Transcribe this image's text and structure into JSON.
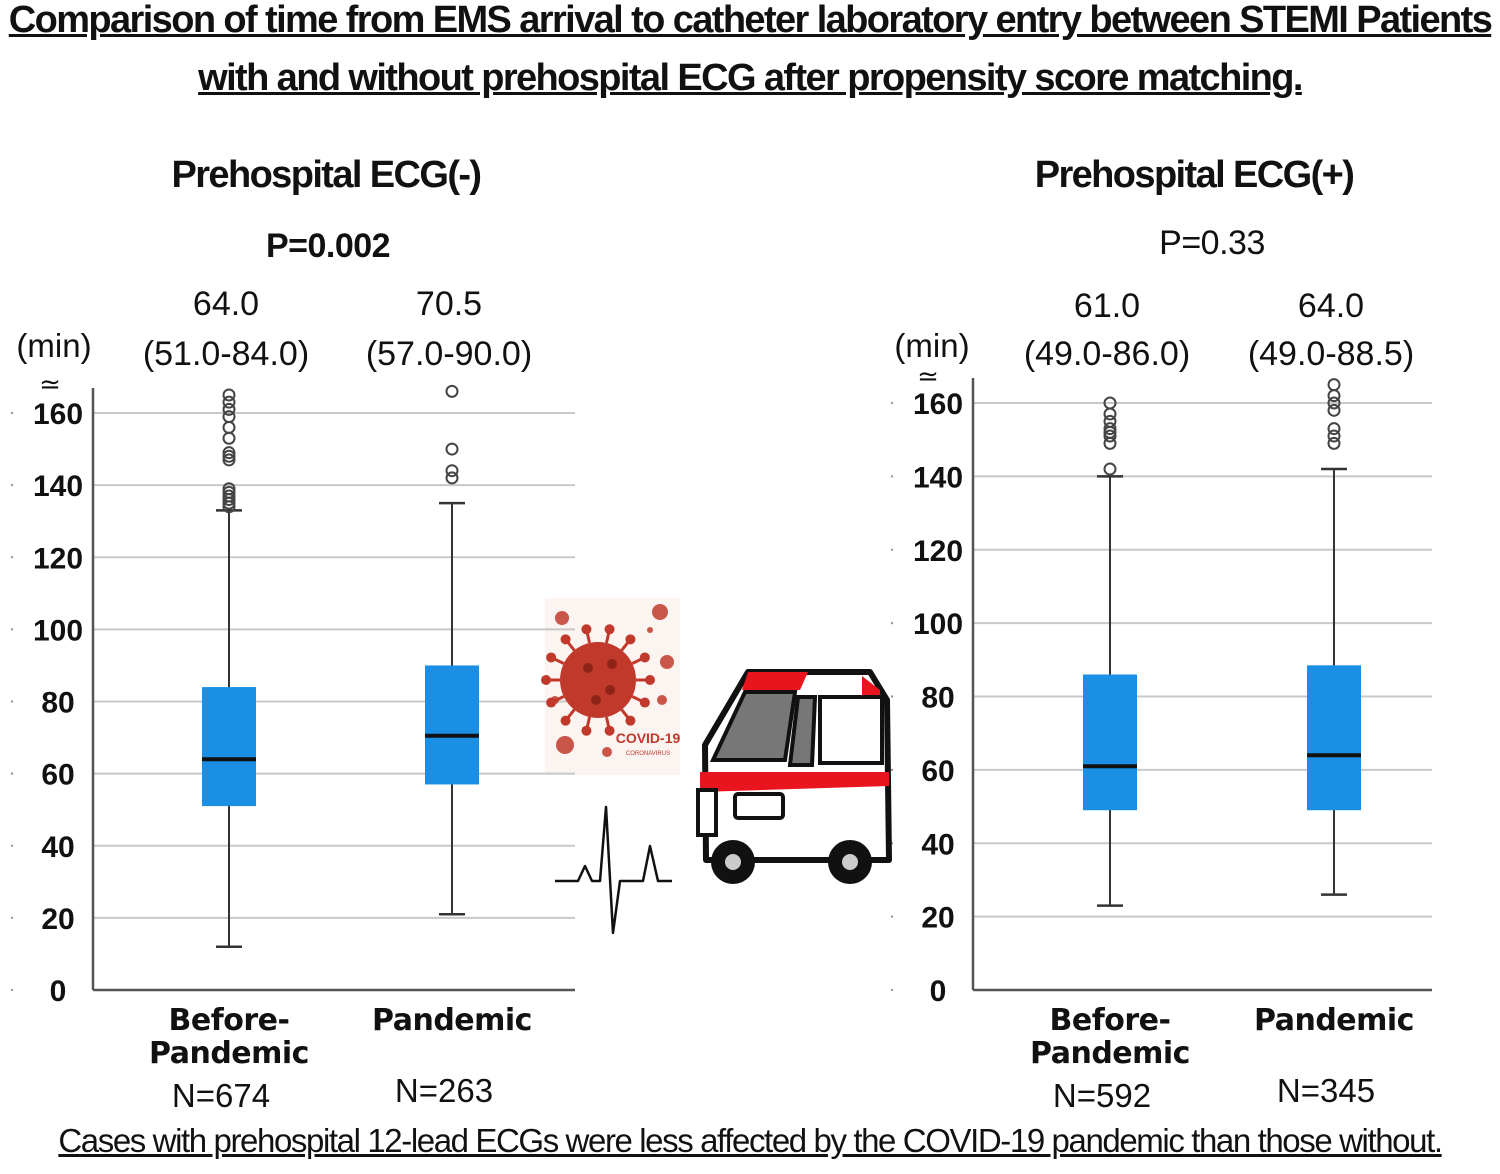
{
  "title_line_1": "Comparison of time from EMS arrival to catheter laboratory entry between STEMI Patients",
  "title_line_2": "with and without prehospital ECG after propensity score matching.",
  "footnote": "Cases with prehospital 12-lead ECGs were less affected by the COVID-19 pandemic than those without.",
  "illustration": {
    "virus_text": "COVID-19",
    "virus_subtext": "CORONAVIRUS",
    "icons": [
      "coronavirus-icon",
      "ecg-waveform-icon",
      "ambulance-icon"
    ],
    "colors": {
      "virus": "#c0392b",
      "ambulance_stripe": "#e8141e"
    }
  },
  "chart_data": [
    {
      "type": "box",
      "title": "Prehospital ECG(-)",
      "p_value": "P=0.002",
      "p_value_bold": true,
      "ylabel": "(min)",
      "ylim": [
        0,
        165
      ],
      "yticks": [
        0,
        20,
        40,
        60,
        80,
        100,
        120,
        140,
        160
      ],
      "axis_break_symbol": "≃",
      "grid": true,
      "box_color": "#1a8fe3",
      "groups": [
        {
          "label_line_1": "Before-",
          "label_line_2": "Pandemic",
          "n": "N=674",
          "median_label": "64.0",
          "iqr_label": "(51.0-84.0)",
          "min": 12,
          "q1": 51.0,
          "median": 64.0,
          "q3": 84.0,
          "max": 133,
          "outliers": [
            134,
            135,
            136,
            137,
            138,
            139,
            147,
            148,
            149,
            153,
            156,
            159,
            161,
            163,
            165
          ]
        },
        {
          "label_line_1": "Pandemic",
          "label_line_2": "",
          "n": "N=263",
          "median_label": "70.5",
          "iqr_label": "(57.0-90.0)",
          "min": 21,
          "q1": 57.0,
          "median": 70.5,
          "q3": 90.0,
          "max": 135,
          "outliers": [
            142,
            144,
            150,
            166
          ]
        }
      ]
    },
    {
      "type": "box",
      "title": "Prehospital ECG(+)",
      "p_value": "P=0.33",
      "p_value_bold": false,
      "ylabel": "(min)",
      "ylim": [
        0,
        165
      ],
      "yticks": [
        0,
        20,
        40,
        60,
        80,
        100,
        120,
        140,
        160
      ],
      "axis_break_symbol": "≃",
      "grid": true,
      "box_color": "#1a8fe3",
      "groups": [
        {
          "label_line_1": "Before-",
          "label_line_2": "Pandemic",
          "n": "N=592",
          "median_label": "61.0",
          "iqr_label": "(49.0-86.0)",
          "min": 23,
          "q1": 49.0,
          "median": 61.0,
          "q3": 86.0,
          "max": 140,
          "outliers": [
            142,
            149,
            151,
            152,
            153,
            155,
            157,
            160,
            166
          ]
        },
        {
          "label_line_1": "Pandemic",
          "label_line_2": "",
          "n": "N=345",
          "median_label": "64.0",
          "iqr_label": "(49.0-88.5)",
          "min": 26,
          "q1": 49.0,
          "median": 64.0,
          "q3": 88.5,
          "max": 142,
          "outliers": [
            149,
            151,
            153,
            158,
            160,
            162,
            165
          ]
        }
      ]
    }
  ]
}
